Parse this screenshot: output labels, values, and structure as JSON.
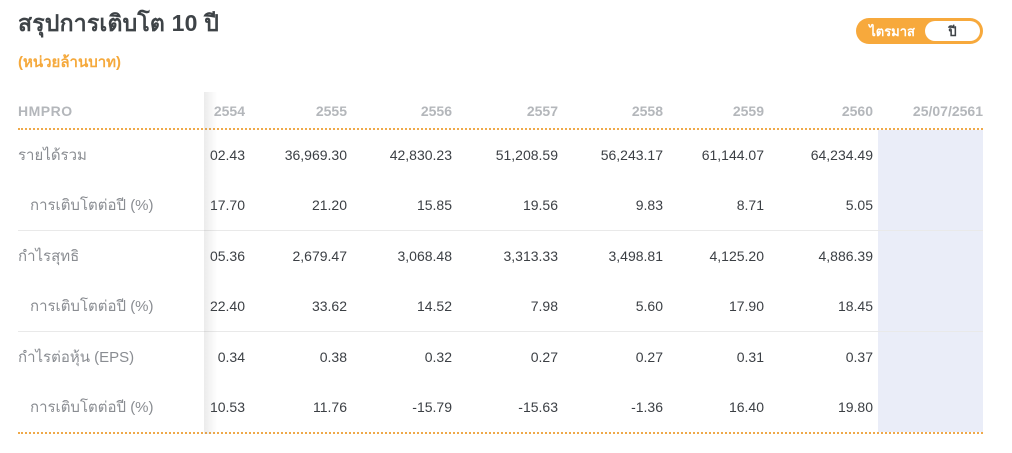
{
  "page": {
    "title": "สรุปการเติบโต 10 ปี",
    "subtitle": "(หน่วยล้านบาท)"
  },
  "toggle": {
    "quarter_label": "ไตรมาส",
    "year_label": "ปี",
    "selected": "ปี"
  },
  "colors": {
    "accent_orange": "#f7a93c",
    "highlight_column_bg": "#eaedf8",
    "header_text": "#b4b7bb",
    "label_text": "#8a8d92",
    "value_text": "#3b3f44"
  },
  "table": {
    "stock_symbol": "HMPRO",
    "columns": [
      "2554",
      "2555",
      "2556",
      "2557",
      "2558",
      "2559",
      "2560",
      "25/07/2561"
    ],
    "rows": [
      {
        "label": "รายได้รวม",
        "indent": false,
        "values": [
          "02.43",
          "36,969.30",
          "42,830.23",
          "51,208.59",
          "56,243.17",
          "61,144.07",
          "64,234.49",
          ""
        ]
      },
      {
        "label": "การเติบโตต่อปี (%)",
        "indent": true,
        "values": [
          "17.70",
          "21.20",
          "15.85",
          "19.56",
          "9.83",
          "8.71",
          "5.05",
          ""
        ]
      },
      {
        "label": "กำไรสุทธิ",
        "indent": false,
        "values": [
          "05.36",
          "2,679.47",
          "3,068.48",
          "3,313.33",
          "3,498.81",
          "4,125.20",
          "4,886.39",
          ""
        ]
      },
      {
        "label": "การเติบโตต่อปี (%)",
        "indent": true,
        "values": [
          "22.40",
          "33.62",
          "14.52",
          "7.98",
          "5.60",
          "17.90",
          "18.45",
          ""
        ]
      },
      {
        "label": "กำไรต่อหุ้น (EPS)",
        "indent": false,
        "values": [
          "0.34",
          "0.38",
          "0.32",
          "0.27",
          "0.27",
          "0.31",
          "0.37",
          ""
        ]
      },
      {
        "label": "การเติบโตต่อปี (%)",
        "indent": true,
        "values": [
          "10.53",
          "11.76",
          "-15.79",
          "-15.63",
          "-1.36",
          "16.40",
          "19.80",
          ""
        ]
      }
    ],
    "separator_after_rows": [
      1,
      3
    ]
  }
}
